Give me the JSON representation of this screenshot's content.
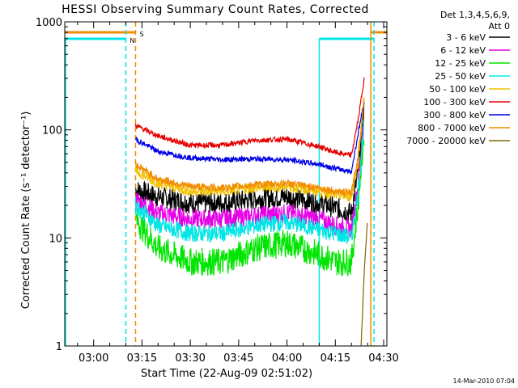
{
  "chart_data": {
    "type": "line",
    "title": "HESSI Observing Summary Count Rates, Corrected",
    "xlabel": "Start Time (22-Aug-09 02:51:02)",
    "ylabel": "Corrected Count Rate (s⁻¹ detector⁻¹)",
    "yscale": "log",
    "ylim": [
      1,
      1000
    ],
    "xlim": [
      "02:51:02",
      "04:31:00"
    ],
    "x_tick_labels": [
      "03:00",
      "03:15",
      "03:30",
      "03:45",
      "04:00",
      "04:15",
      "04:30"
    ],
    "y_tick_labels": [
      "1",
      "10",
      "100",
      "1000"
    ],
    "legend_header": [
      "Det 1,3,4,5,6,9,",
      "Att 0"
    ],
    "legend_position": "right",
    "timestamp": "14-Mar-2010 07:04",
    "flags": [
      {
        "label": "S",
        "color": "#f28c00"
      },
      {
        "label": "N",
        "color": "#00e5e5"
      }
    ],
    "series": [
      {
        "name": "3 - 6 keV",
        "color": "#000000",
        "x": [
          "03:13",
          "03:20",
          "03:30",
          "03:40",
          "03:50",
          "04:00",
          "04:10",
          "04:15",
          "04:20",
          "04:22",
          "04:24"
        ],
        "values": [
          28,
          24,
          21,
          21,
          23,
          24,
          21,
          19,
          17,
          40,
          160
        ]
      },
      {
        "name": "6 - 12 keV",
        "color": "#e600e6",
        "x": [
          "03:13",
          "03:20",
          "03:30",
          "03:40",
          "03:50",
          "04:00",
          "04:10",
          "04:15",
          "04:20",
          "04:22",
          "04:24"
        ],
        "values": [
          23,
          17,
          15,
          15,
          16,
          17,
          15,
          13,
          12,
          30,
          140
        ]
      },
      {
        "name": "12 - 25 keV",
        "color": "#00e600",
        "x": [
          "03:13",
          "03:20",
          "03:30",
          "03:40",
          "03:50",
          "04:00",
          "04:10",
          "04:15",
          "04:20",
          "04:22",
          "04:24"
        ],
        "values": [
          15,
          8,
          6,
          6,
          8,
          9,
          7,
          6,
          6,
          20,
          100
        ]
      },
      {
        "name": "25 - 50 keV",
        "color": "#00e5e5",
        "x": [
          "03:13",
          "03:20",
          "03:30",
          "03:40",
          "03:50",
          "04:00",
          "04:10",
          "04:15",
          "04:20",
          "04:22",
          "04:24"
        ],
        "values": [
          20,
          13,
          11,
          11,
          13,
          14,
          12,
          11,
          10,
          25,
          120
        ]
      },
      {
        "name": "50 - 100 keV",
        "color": "#f2c200",
        "x": [
          "03:13",
          "03:20",
          "03:30",
          "03:40",
          "03:50",
          "04:00",
          "04:10",
          "04:15",
          "04:20",
          "04:22",
          "04:24"
        ],
        "values": [
          42,
          32,
          27,
          27,
          29,
          30,
          27,
          25,
          24,
          50,
          200
        ]
      },
      {
        "name": "100 - 300 keV",
        "color": "#e60000",
        "x": [
          "03:13",
          "03:20",
          "03:30",
          "03:40",
          "03:50",
          "04:00",
          "04:10",
          "04:15",
          "04:20",
          "04:22",
          "04:24"
        ],
        "values": [
          110,
          88,
          72,
          72,
          80,
          82,
          70,
          62,
          58,
          120,
          300
        ]
      },
      {
        "name": "300 - 800 keV",
        "color": "#0000e6",
        "x": [
          "03:13",
          "03:20",
          "03:30",
          "03:40",
          "03:50",
          "04:00",
          "04:10",
          "04:15",
          "04:20",
          "04:22",
          "04:24"
        ],
        "values": [
          82,
          63,
          55,
          53,
          54,
          53,
          48,
          44,
          41,
          90,
          190
        ]
      },
      {
        "name": "800 - 7000 keV",
        "color": "#f28c00",
        "x": [
          "03:13",
          "03:20",
          "03:30",
          "03:40",
          "03:50",
          "04:00",
          "04:10",
          "04:15",
          "04:20",
          "04:22",
          "04:24"
        ],
        "values": [
          48,
          35,
          30,
          29,
          31,
          32,
          29,
          27,
          26,
          55,
          210
        ]
      },
      {
        "name": "7000 - 20000 keV",
        "color": "#806600",
        "x": [
          "04:23",
          "04:24",
          "04:25"
        ],
        "values": [
          1,
          5,
          15
        ]
      }
    ]
  }
}
